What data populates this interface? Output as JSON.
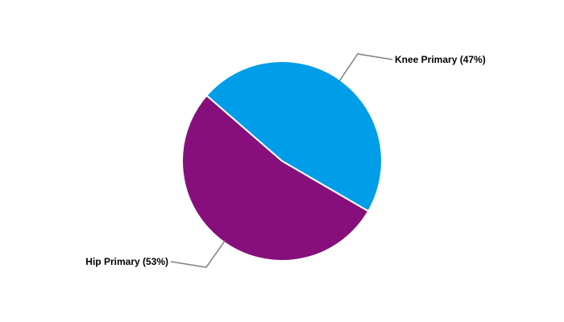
{
  "chart_data": {
    "type": "pie",
    "title": "",
    "slices": [
      {
        "label": "Knee Primary (47%)",
        "name": "Knee Primary",
        "value": 47,
        "color": "#009DE8"
      },
      {
        "label": "Hip Primary (53%)",
        "name": "Hip Primary",
        "value": 53,
        "color": "#870F7B"
      }
    ],
    "start_angle_deg": 311,
    "direction": "clockwise",
    "leader_line_color": "#808080",
    "legend": "none"
  }
}
